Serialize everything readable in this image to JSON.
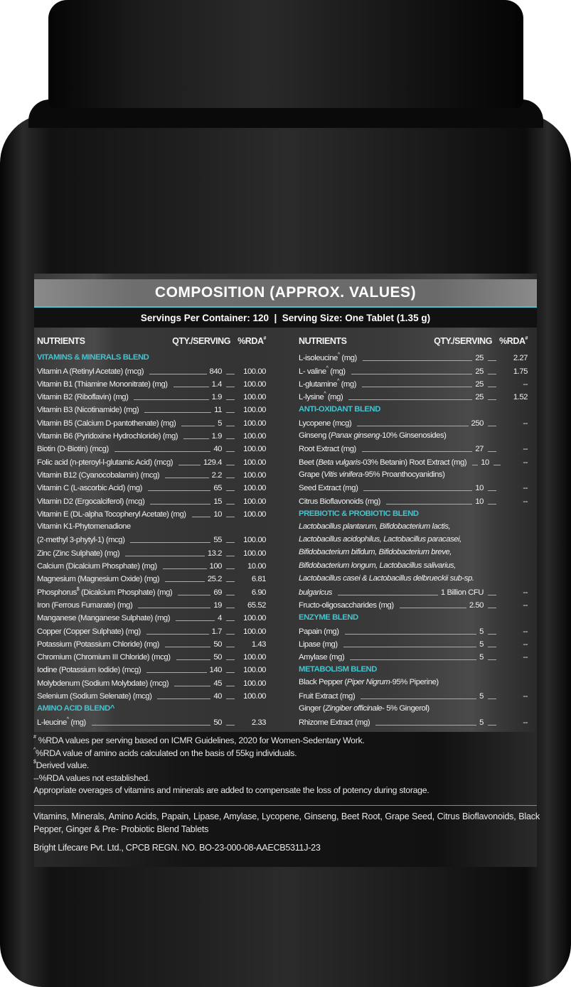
{
  "colors": {
    "accent": "#45c3cf",
    "bottle": "#1a1a1a"
  },
  "title": "COMPOSITION (APPROX. VALUES)",
  "serving_line": "Servings Per Container: 120  |  Serving Size: One Tablet (1.35 g)",
  "headers": {
    "nutrients": "NUTRIENTS",
    "qty": "QTY./SERVING",
    "rda": "%RDA",
    "rda_sup": "#"
  },
  "left": [
    {
      "sec": "VITAMINS & MINERALS BLEND"
    },
    {
      "n": "Vitamin A (Retinyl Acetate) (mcg)",
      "q": "840",
      "r": "100.00"
    },
    {
      "n": "Vitamin B1 (Thiamine Mononitrate) (mg)",
      "q": "1.4",
      "r": "100.00"
    },
    {
      "n": "Vitamin B2 (Riboflavin) (mg)",
      "q": "1.9",
      "r": "100.00"
    },
    {
      "n": "Vitamin B3 (Nicotinamide) (mg)",
      "q": "11",
      "r": "100.00"
    },
    {
      "n": "Vitamin B5 (Calcium D-pantothenate) (mg)",
      "q": "5",
      "r": "100.00"
    },
    {
      "n": "Vitamin B6 (Pyridoxine Hydrochloride) (mg)",
      "q": "1.9",
      "r": "100.00"
    },
    {
      "n": "Biotin (D-Biotin) (mcg)",
      "q": "40",
      "r": "100.00"
    },
    {
      "n": "Folic acid (n-pteroyl-l-glutamic Acid) (mcg)",
      "q": "129.4",
      "r": "100.00"
    },
    {
      "n": "Vitamin B12 (Cyanocobalamin) (mcg)",
      "q": "2.2",
      "r": "100.00"
    },
    {
      "n": "Vitamin C (L-ascorbic Acid) (mg)",
      "q": "65",
      "r": "100.00"
    },
    {
      "n": "Vitamin D2 (Ergocalciferol) (mcg)",
      "q": "15",
      "r": "100.00"
    },
    {
      "n": "Vitamin E (DL-alpha Tocopheryl Acetate) (mg)",
      "q": "10",
      "r": "100.00"
    },
    {
      "t": "Vitamin K1-Phytomenadione"
    },
    {
      "n": "(2-methyl 3-phytyl-1) (mcg)",
      "q": "55",
      "r": "100.00"
    },
    {
      "n": "Zinc (Zinc Sulphate) (mg)",
      "q": "13.2",
      "r": "100.00"
    },
    {
      "n": "Calcium (Dicalcium Phosphate) (mg)",
      "q": "100",
      "r": "10.00"
    },
    {
      "n": "Magnesium (Magnesium Oxide) (mg)",
      "q": "25.2",
      "r": "6.81"
    },
    {
      "n": [
        {
          "t": "Phosphorus"
        },
        {
          "sup": "$"
        },
        {
          "t": " (Dicalcium Phosphate) (mg)"
        }
      ],
      "q": "69",
      "r": "6.90"
    },
    {
      "n": "Iron (Ferrous Fumarate) (mg)",
      "q": "19",
      "r": "65.52"
    },
    {
      "n": "Manganese (Manganese Sulphate) (mg)",
      "q": "4",
      "r": "100.00"
    },
    {
      "n": "Copper (Copper Sulphate) (mg)",
      "q": "1.7",
      "r": "100.00"
    },
    {
      "n": "Potassium (Potassium Chloride) (mg)",
      "q": "50",
      "r": "1.43"
    },
    {
      "n": "Chromium (Chromium III Chloride) (mcg)",
      "q": "50",
      "r": "100.00"
    },
    {
      "n": "Iodine (Potassium Iodide) (mcg)",
      "q": "140",
      "r": "100.00"
    },
    {
      "n": "Molybdenum (Sodium Molybdate) (mcg)",
      "q": "45",
      "r": "100.00"
    },
    {
      "n": "Selenium (Sodium Selenate) (mcg)",
      "q": "40",
      "r": "100.00"
    },
    {
      "sec": "AMINO ACID BLEND^"
    },
    {
      "n": [
        {
          "t": "L-leucine"
        },
        {
          "sup": "^"
        },
        {
          "t": " (mg)"
        }
      ],
      "q": "50",
      "r": "2.33"
    }
  ],
  "right": [
    {
      "n": [
        {
          "t": "L-isoleucine"
        },
        {
          "sup": "^"
        },
        {
          "t": " (mg)"
        }
      ],
      "q": "25",
      "r": "2.27"
    },
    {
      "n": [
        {
          "t": "L- valine"
        },
        {
          "sup": "^"
        },
        {
          "t": " (mg)"
        }
      ],
      "q": "25",
      "r": "1.75"
    },
    {
      "n": [
        {
          "t": "L-glutamine"
        },
        {
          "sup": "^"
        },
        {
          "t": " (mg)"
        }
      ],
      "q": "25",
      "r": "--"
    },
    {
      "n": [
        {
          "t": "L-lysine"
        },
        {
          "sup": "^"
        },
        {
          "t": " (mg)"
        }
      ],
      "q": "25",
      "r": "1.52"
    },
    {
      "sec": "ANTI-OXIDANT BLEND"
    },
    {
      "n": "Lycopene (mcg)",
      "q": "250",
      "r": "--"
    },
    {
      "t": [
        {
          "t": "Ginseng ("
        },
        {
          "i": "Panax ginseng"
        },
        {
          "t": "-10% Ginsenosides)"
        }
      ]
    },
    {
      "n": "Root Extract (mg)",
      "q": "27",
      "r": "--"
    },
    {
      "n": [
        {
          "t": "Beet ("
        },
        {
          "i": "Beta vulgaris"
        },
        {
          "t": "-03% Betanin) Root Extract (mg)"
        }
      ],
      "q": "10",
      "r": "--"
    },
    {
      "t": [
        {
          "t": "Grape ("
        },
        {
          "i": "Vitis vinifera"
        },
        {
          "t": "-95% Proanthocyanidins)"
        }
      ]
    },
    {
      "n": "Seed Extract (mg)",
      "q": "10",
      "r": "--"
    },
    {
      "n": "Citrus Bioflavonoids (mg)",
      "q": "10",
      "r": "--"
    },
    {
      "sec": "PREBIOTIC & PROBIOTIC BLEND"
    },
    {
      "t": [
        {
          "i": "Lactobacillus plantarum, Bifidobacterium lactis,"
        }
      ]
    },
    {
      "t": [
        {
          "i": "Lactobacillus acidophilus, Lactobacillus paracasei,"
        }
      ]
    },
    {
      "t": [
        {
          "i": "Bifidobacterium bifidum, Bifidobacterium breve,"
        }
      ]
    },
    {
      "t": [
        {
          "i": "Bifidobacterium longum, Lactobacillus salivarius,"
        }
      ]
    },
    {
      "t": [
        {
          "i": "Lactobacillus casei & Lactobacillus delbrueckii sub-sp."
        }
      ]
    },
    {
      "n": [
        {
          "i": "bulgaricus"
        }
      ],
      "q": "1 Billion CFU",
      "r": "--"
    },
    {
      "n": "Fructo-oligosaccharides (mg)",
      "q": "2.50",
      "r": "--"
    },
    {
      "sec": "ENZYME BLEND"
    },
    {
      "n": "Papain (mg)",
      "q": "5",
      "r": "--"
    },
    {
      "n": "Lipase (mg)",
      "q": "5",
      "r": "--"
    },
    {
      "n": "Amylase (mg)",
      "q": "5",
      "r": "--"
    },
    {
      "sec": "METABOLISM BLEND"
    },
    {
      "t": [
        {
          "t": "Black Pepper ("
        },
        {
          "i": "Piper Nigrum"
        },
        {
          "t": "-95% Piperine)"
        }
      ]
    },
    {
      "n": "Fruit Extract (mg)",
      "q": "5",
      "r": "--"
    },
    {
      "t": [
        {
          "t": "Ginger ("
        },
        {
          "i": "Zingiber officinale"
        },
        {
          "t": "- 5% Gingerol)"
        }
      ]
    },
    {
      "n": "Rhizome Extract (mg)",
      "q": "5",
      "r": "--"
    }
  ],
  "notes": [
    {
      "sup": "#",
      "text": " %RDA values per serving based on ICMR Guidelines, 2020 for Women-Sedentary Work."
    },
    {
      "sup": "^",
      "text": "%RDA value of amino acids calculated on the basis of 55kg individuals."
    },
    {
      "sup": "$",
      "text": "Derived value."
    },
    {
      "sup": "",
      "text": "--%RDA values not established."
    },
    {
      "sup": "",
      "text": "Appropriate overages of vitamins and minerals are added to compensate the loss of potency during storage."
    }
  ],
  "ingredients": "Vitamins, Minerals, Amino Acids, Papain, Lipase, Amylase, Lycopene, Ginseng, Beet Root, Grape Seed, Citrus Bioflavonoids, Black Pepper, Ginger & Pre- Probiotic Blend Tablets",
  "company": "Bright Lifecare Pvt. Ltd., CPCB REGN. NO. BO-23-000-08-AAECB5311J-23"
}
